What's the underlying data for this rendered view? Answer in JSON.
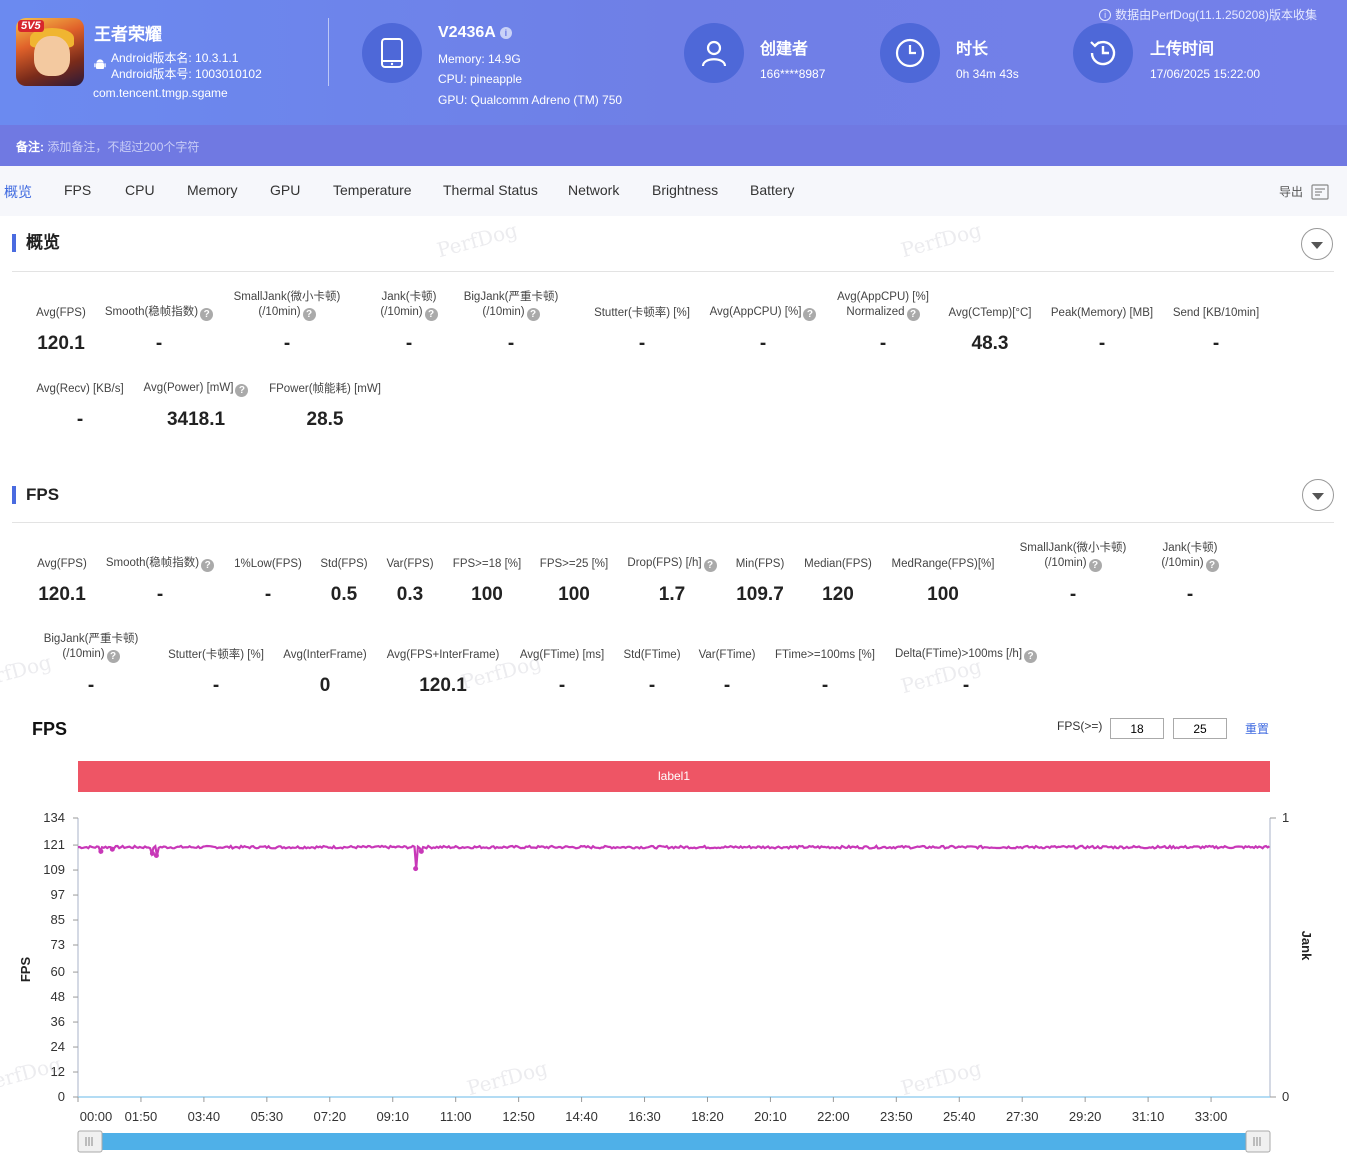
{
  "header": {
    "collect_note": "数据由PerfDog(11.1.250208)版本收集",
    "app": {
      "name": "王者荣耀",
      "version_name": "Android版本名: 10.3.1.1",
      "version_code": "Android版本号: 1003010102",
      "package": "com.tencent.tmgp.sgame",
      "logo_badge": "5V5"
    },
    "device": {
      "name": "V2436A",
      "memory": "Memory: 14.9G",
      "cpu": "CPU: pineapple",
      "gpu": "GPU: Qualcomm Adreno (TM) 750"
    },
    "creator": {
      "title": "创建者",
      "value": "166****8987"
    },
    "duration": {
      "title": "时长",
      "value": "0h 34m 43s"
    },
    "upload": {
      "title": "上传时间",
      "value": "17/06/2025 15:22:00"
    }
  },
  "note": {
    "label": "备注:",
    "placeholder": "添加备注，不超过200个字符"
  },
  "tabs": [
    "概览",
    "FPS",
    "CPU",
    "Memory",
    "GPU",
    "Temperature",
    "Thermal Status",
    "Network",
    "Brightness",
    "Battery"
  ],
  "export_label": "导出",
  "watermark": "PerfDog",
  "overview": {
    "title": "概览",
    "metrics": [
      {
        "l1": "",
        "l2": "Avg(FPS)",
        "value": "120.1"
      },
      {
        "l1": "",
        "l2": "Smooth(稳帧指数)",
        "value": "-"
      },
      {
        "l1": "SmallJank(微小卡顿)",
        "l2": "(/10min)",
        "value": "-"
      },
      {
        "l1": "Jank(卡顿)",
        "l2": "(/10min)",
        "value": "-"
      },
      {
        "l1": "BigJank(严重卡顿)",
        "l2": "(/10min)",
        "value": "-"
      },
      {
        "l1": "",
        "l2": "Stutter(卡顿率) [%]",
        "value": "-"
      },
      {
        "l1": "",
        "l2": "Avg(AppCPU) [%]",
        "value": "-"
      },
      {
        "l1": "Avg(AppCPU) [%]",
        "l2": "Normalized",
        "value": "-"
      },
      {
        "l1": "",
        "l2": "Avg(CTemp)[°C]",
        "value": "48.3"
      },
      {
        "l1": "",
        "l2": "Peak(Memory) [MB]",
        "value": "-"
      },
      {
        "l1": "",
        "l2": "Send [KB/10min]",
        "value": "-"
      },
      {
        "l1": "",
        "l2": "Avg(Recv) [KB/s]",
        "value": "-"
      },
      {
        "l1": "",
        "l2": "Avg(Power) [mW]",
        "value": "3418.1"
      },
      {
        "l1": "",
        "l2": "FPower(帧能耗) [mW]",
        "value": "28.5"
      }
    ]
  },
  "fps_section": {
    "title": "FPS",
    "metrics": [
      {
        "l1": "",
        "l2": "Avg(FPS)",
        "value": "120.1"
      },
      {
        "l1": "",
        "l2": "Smooth(稳帧指数)",
        "value": "-"
      },
      {
        "l1": "",
        "l2": "1%Low(FPS)",
        "value": "-"
      },
      {
        "l1": "",
        "l2": "Std(FPS)",
        "value": "0.5"
      },
      {
        "l1": "",
        "l2": "Var(FPS)",
        "value": "0.3"
      },
      {
        "l1": "",
        "l2": "FPS>=18 [%]",
        "value": "100"
      },
      {
        "l1": "",
        "l2": "FPS>=25 [%]",
        "value": "100"
      },
      {
        "l1": "",
        "l2": "Drop(FPS) [/h]",
        "value": "1.7"
      },
      {
        "l1": "",
        "l2": "Min(FPS)",
        "value": "109.7"
      },
      {
        "l1": "",
        "l2": "Median(FPS)",
        "value": "120"
      },
      {
        "l1": "",
        "l2": "MedRange(FPS)[%]",
        "value": "100"
      },
      {
        "l1": "SmallJank(微小卡顿)",
        "l2": "(/10min)",
        "value": "-"
      },
      {
        "l1": "Jank(卡顿)",
        "l2": "(/10min)",
        "value": "-"
      },
      {
        "l1": "BigJank(严重卡顿)",
        "l2": "(/10min)",
        "value": "-"
      },
      {
        "l1": "",
        "l2": "Stutter(卡顿率) [%]",
        "value": "-"
      },
      {
        "l1": "",
        "l2": "Avg(InterFrame)",
        "value": "0"
      },
      {
        "l1": "",
        "l2": "Avg(FPS+InterFrame)",
        "value": "120.1"
      },
      {
        "l1": "",
        "l2": "Avg(FTime) [ms]",
        "value": "-"
      },
      {
        "l1": "",
        "l2": "Std(FTime)",
        "value": "-"
      },
      {
        "l1": "",
        "l2": "Var(FTime)",
        "value": "-"
      },
      {
        "l1": "",
        "l2": "FTime>=100ms [%]",
        "value": "-"
      },
      {
        "l1": "",
        "l2": "Delta(FTime)>100ms [/h]",
        "value": "-"
      }
    ]
  },
  "chart_controls": {
    "fps_label": "FPS(>=)",
    "threshold1": "18",
    "threshold2": "25",
    "reset": "重置"
  },
  "chart_data": {
    "type": "line",
    "title": "FPS",
    "label_band": "label1",
    "ylabel": "FPS",
    "y2label": "Jank",
    "ylim": [
      0,
      134
    ],
    "y_ticks": [
      "0",
      "12",
      "24",
      "36",
      "48",
      "60",
      "73",
      "85",
      "97",
      "109",
      "121",
      "134"
    ],
    "y2_ticks": [
      "0",
      "1"
    ],
    "x_ticks": [
      "00:00",
      "01:50",
      "03:40",
      "05:30",
      "07:20",
      "09:10",
      "11:00",
      "12:50",
      "14:40",
      "16:30",
      "18:20",
      "20:10",
      "22:00",
      "23:50",
      "25:40",
      "27:30",
      "29:20",
      "31:10",
      "33:00"
    ],
    "x_range_seconds": [
      0,
      2083
    ],
    "series": [
      {
        "name": "FPS",
        "color": "#c838b8",
        "baseline": 120,
        "dips": [
          {
            "t": 40,
            "v": 118
          },
          {
            "t": 60,
            "v": 119
          },
          {
            "t": 130,
            "v": 117
          },
          {
            "t": 137,
            "v": 116
          },
          {
            "t": 590,
            "v": 109.7
          },
          {
            "t": 600,
            "v": 118
          }
        ]
      }
    ],
    "slider_color": "#4fb0e8"
  }
}
